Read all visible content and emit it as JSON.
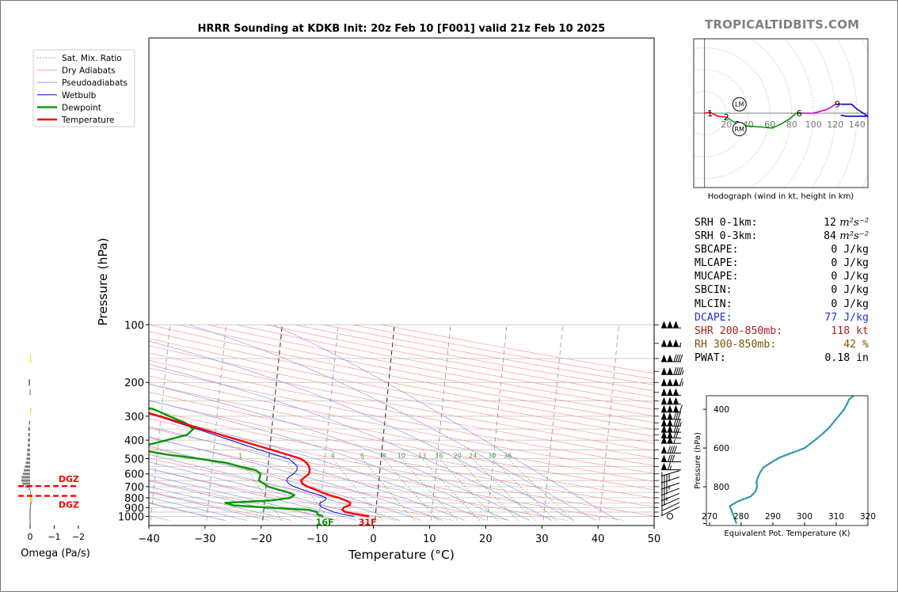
{
  "site": "TROPICALTIDBITS.COM",
  "colors": {
    "temperature": "#ff0000",
    "dewpoint": "#009900",
    "wetbulb": "#0000dd",
    "dry_adiabat": "#ff8888",
    "moist_adiabat": "#8888dd",
    "mixing_ratio": "#339933",
    "isotherm": "#999999",
    "dgz": "#ff0000",
    "omega_fill": "#808080",
    "omega_yellow": "#ffdd00",
    "theta_e": "#3399aa",
    "dcape": "#2233cc",
    "shr": "#aa2222",
    "rh": "#775500"
  },
  "chart_data": [
    {
      "type": "line",
      "name": "skew-t",
      "title": "HRRR Sounding at KDKB Init: 20z Feb 10 [F001] valid 21z Feb 10 2025",
      "xlabel": "Temperature (°C)",
      "ylabel": "Pressure (hPa)",
      "x_ticks": [
        "−40",
        "−30",
        "−20",
        "−10",
        "0",
        "10",
        "20",
        "30",
        "40",
        "50"
      ],
      "y_ticks": [
        "100",
        "200",
        "300",
        "400",
        "500",
        "600",
        "700",
        "800",
        "900",
        "1000"
      ],
      "xlim": [
        -40,
        50
      ],
      "ylim": [
        1050,
        100
      ],
      "scale": "log-pressure, skewed temperature",
      "legend": {
        "placement": "upper-left",
        "entries": [
          "Sat. Mix. Ratio",
          "Dry Adiabats",
          "Pseudoadiabats",
          "Wetbulb",
          "Dewpoint",
          "Temperature"
        ]
      },
      "series": [
        {
          "name": "Temperature",
          "color": "#ff0000",
          "p": [
            1000,
            975,
            950,
            925,
            900,
            875,
            850,
            825,
            800,
            775,
            750,
            725,
            700,
            675,
            650,
            625,
            600,
            575,
            550,
            525,
            500,
            450,
            400,
            350,
            300,
            275,
            250,
            225,
            200,
            175,
            150,
            125,
            100
          ],
          "t": [
            -1.1,
            -3.5,
            -5.5,
            -6.0,
            -5.8,
            -4.8,
            -4.7,
            -5.6,
            -6.9,
            -8.5,
            -9.9,
            -11.2,
            -12.6,
            -13.6,
            -13.9,
            -13.3,
            -12.6,
            -12.5,
            -12.7,
            -13.2,
            -14.3,
            -19.6,
            -25.7,
            -32.5,
            -40.2,
            -44.7,
            -48.0,
            -52.3,
            -56.0,
            -59.0,
            -61.0,
            -63.0,
            -62.0
          ]
        },
        {
          "name": "Dewpoint",
          "color": "#009900",
          "p": [
            1000,
            975,
            950,
            925,
            900,
            875,
            850,
            825,
            800,
            775,
            750,
            725,
            700,
            650,
            600,
            575,
            550,
            525,
            500,
            475,
            450,
            425,
            400,
            375,
            350,
            325,
            300,
            275,
            250,
            225,
            200,
            175,
            150,
            125,
            100
          ],
          "t": [
            -9.3,
            -10.4,
            -10.4,
            -12.0,
            -19.5,
            -25.5,
            -27.0,
            -18.6,
            -15.5,
            -14.8,
            -15.9,
            -17.8,
            -19.6,
            -21.4,
            -21.2,
            -22.1,
            -24.9,
            -27.6,
            -32.5,
            -38.4,
            -42.9,
            -42.0,
            -38.5,
            -35.0,
            -34.0,
            -35.5,
            -38.5,
            -41.5,
            -50.0,
            -57.0,
            -58.0,
            -64.0,
            -71.0,
            -76.0,
            -80.0
          ]
        },
        {
          "name": "Wetbulb",
          "color": "#0000dd",
          "p": [
            1000,
            975,
            950,
            925,
            900,
            875,
            850,
            825,
            800,
            775,
            750,
            725,
            700,
            675,
            650,
            625,
            600,
            575,
            550,
            525,
            500,
            450,
            400,
            350,
            300,
            275,
            250,
            225,
            200,
            175,
            150,
            125,
            100
          ],
          "t": [
            -3.8,
            -5.9,
            -7.5,
            -8.5,
            -9.6,
            -10.1,
            -10.1,
            -9.2,
            -9.1,
            -10.4,
            -11.9,
            -13.5,
            -15.0,
            -16.0,
            -16.5,
            -16.2,
            -15.3,
            -14.8,
            -14.8,
            -15.5,
            -16.5,
            -21.8,
            -27.2,
            -33.3,
            -40.6,
            -45.0,
            -48.4,
            -52.6,
            -56.2,
            -59.2,
            -61.2,
            -63.2,
            -62.3
          ]
        }
      ],
      "surface_labels": {
        "temperature": "31F",
        "dewpoint": "16F"
      },
      "mixing_ratio_labels": [
        "1",
        "2",
        "4",
        "6",
        "8",
        "10",
        "13",
        "16",
        "20",
        "24",
        "30",
        "36"
      ],
      "wind_barbs": [
        {
          "p": 100,
          "kt": 150
        },
        {
          "p": 125,
          "kt": 155
        },
        {
          "p": 150,
          "kt": 140
        },
        {
          "p": 175,
          "kt": 145
        },
        {
          "p": 200,
          "kt": 165
        },
        {
          "p": 225,
          "kt": 150
        },
        {
          "p": 250,
          "kt": 150
        },
        {
          "p": 275,
          "kt": 160
        },
        {
          "p": 300,
          "kt": 130
        },
        {
          "p": 325,
          "kt": 135
        },
        {
          "p": 350,
          "kt": 125
        },
        {
          "p": 375,
          "kt": 120
        },
        {
          "p": 400,
          "kt": 105
        },
        {
          "p": 450,
          "kt": 90
        },
        {
          "p": 500,
          "kt": 80
        },
        {
          "p": 550,
          "kt": 65
        },
        {
          "p": 600,
          "kt": 55
        },
        {
          "p": 650,
          "kt": 40
        },
        {
          "p": 700,
          "kt": 35
        },
        {
          "p": 750,
          "kt": 30
        },
        {
          "p": 800,
          "kt": 25
        },
        {
          "p": 850,
          "kt": 20
        },
        {
          "p": 900,
          "kt": 10
        },
        {
          "p": 950,
          "kt": 5
        },
        {
          "p": 1000,
          "kt": 0
        }
      ]
    },
    {
      "type": "bar",
      "name": "omega",
      "xlabel": "Omega (Pa/s)",
      "x_ticks": [
        "0",
        "−1",
        "−2"
      ],
      "xlim": [
        0.3,
        -2.2
      ],
      "dgz_label": "DGZ",
      "dgz_bounds_hpa": [
        695,
        782
      ],
      "levels": [
        {
          "p": 200,
          "w": 0.06
        },
        {
          "p": 225,
          "w": 0.02
        },
        {
          "p": 280,
          "w": -0.02
        },
        {
          "p": 325,
          "w": 0.05
        },
        {
          "p": 350,
          "w": 0.08
        },
        {
          "p": 375,
          "w": 0.08
        },
        {
          "p": 400,
          "w": 0.09
        },
        {
          "p": 425,
          "w": 0.1
        },
        {
          "p": 450,
          "w": 0.12
        },
        {
          "p": 475,
          "w": 0.13
        },
        {
          "p": 500,
          "w": 0.15
        },
        {
          "p": 525,
          "w": 0.18
        },
        {
          "p": 550,
          "w": 0.22
        },
        {
          "p": 575,
          "w": 0.26
        },
        {
          "p": 600,
          "w": 0.3
        },
        {
          "p": 625,
          "w": 0.35
        },
        {
          "p": 650,
          "w": 0.36
        },
        {
          "p": 675,
          "w": 0.32
        },
        {
          "p": 700,
          "w": 0.2
        },
        {
          "p": 725,
          "w": 0.05
        },
        {
          "p": 750,
          "w": -0.03
        },
        {
          "p": 775,
          "w": -0.05
        },
        {
          "p": 800,
          "w": -0.06
        },
        {
          "p": 825,
          "w": -0.08
        },
        {
          "p": 850,
          "w": -0.06
        },
        {
          "p": 875,
          "w": -0.04
        },
        {
          "p": 900,
          "w": -0.02
        }
      ],
      "yellow_levels": [
        {
          "p": 150,
          "w": -0.03
        },
        {
          "p": 280,
          "w": -0.03
        },
        {
          "p": 790,
          "w": -0.05
        },
        {
          "p": 810,
          "w": -0.06
        },
        {
          "p": 830,
          "w": -0.07
        }
      ]
    },
    {
      "type": "line",
      "name": "hodograph",
      "caption": "Hodograph (wind in kt, height in km)",
      "ring_labels": [
        "20",
        "40",
        "60",
        "80",
        "100",
        "120",
        "140"
      ],
      "xlim": [
        -10,
        150
      ],
      "ylim": [
        -75,
        75
      ],
      "markers": [
        "LM",
        "RM"
      ],
      "height_labels": [
        {
          "label": "1",
          "u": 5,
          "v": 0
        },
        {
          "label": "2",
          "u": 20,
          "v": -4
        },
        {
          "label": "3",
          "u": 30,
          "v": -11
        },
        {
          "label": "6",
          "u": 87,
          "v": 0
        },
        {
          "label": "9",
          "u": 122,
          "v": 9
        }
      ],
      "segments": [
        {
          "color": "#ff0000",
          "u": [
            0,
            5,
            12,
            20
          ],
          "v": [
            0,
            1,
            -3,
            -4
          ]
        },
        {
          "color": "#009900",
          "u": [
            20,
            30,
            40,
            52,
            62,
            70,
            78,
            84,
            90
          ],
          "v": [
            -4,
            -11,
            -13,
            -14,
            -15,
            -11,
            -6,
            0,
            0
          ]
        },
        {
          "color": "#cc00cc",
          "u": [
            90,
            100,
            110,
            115,
            120,
            125
          ],
          "v": [
            0,
            0,
            3,
            5,
            9,
            9
          ]
        },
        {
          "color": "#0000dd",
          "u": [
            125,
            135,
            140,
            150,
            145,
            130,
            125
          ],
          "v": [
            9,
            9,
            4,
            -3,
            -3,
            -3,
            -2
          ]
        }
      ],
      "storm_motion": [
        {
          "label": "LM",
          "u": 32,
          "v": 9
        },
        {
          "label": "RM",
          "u": 32,
          "v": -16
        }
      ]
    },
    {
      "type": "line",
      "name": "theta-e",
      "xlabel": "Equivalent Pot. Temperature (K)",
      "ylabel": "Pressure (hPa)",
      "x_ticks": [
        "270",
        "280",
        "290",
        "300",
        "310",
        "320"
      ],
      "y_ticks": [
        "400",
        "600",
        "800"
      ],
      "xlim": [
        269,
        320
      ],
      "ylim": [
        1000,
        330
      ],
      "series": [
        {
          "name": "theta-e",
          "p": [
            990,
            950,
            900,
            875,
            850,
            825,
            800,
            775,
            750,
            725,
            700,
            650,
            600,
            550,
            500,
            450,
            400,
            370,
            350,
            340,
            330
          ],
          "thetae": [
            278.5,
            277.6,
            276.4,
            279.0,
            283.0,
            284.5,
            285.0,
            284.8,
            285.3,
            286.0,
            287.0,
            292.0,
            300.0,
            304.0,
            307.5,
            310.0,
            312.5,
            313.5,
            314.0,
            314.7,
            315.5
          ]
        }
      ]
    }
  ],
  "stats": [
    {
      "label": "SRH 0-1km:",
      "value": "12",
      "unit": "m²s⁻²"
    },
    {
      "label": "SRH 0-3km:",
      "value": "84",
      "unit": "m²s⁻²"
    },
    {
      "label": "SBCAPE:",
      "value": "0 J/kg"
    },
    {
      "label": "MLCAPE:",
      "value": "0 J/kg"
    },
    {
      "label": "MUCAPE:",
      "value": "0 J/kg"
    },
    {
      "label": "SBCIN:",
      "value": "0 J/kg"
    },
    {
      "label": "MLCIN:",
      "value": "0 J/kg"
    },
    {
      "label": "DCAPE:",
      "value": "77 J/kg",
      "color": "#2233cc"
    },
    {
      "label": "SHR 200-850mb:",
      "value": "118 kt",
      "color": "#aa2222"
    },
    {
      "label": "RH 300-850mb:",
      "value": "42 %",
      "color": "#775500"
    },
    {
      "label": "PWAT:",
      "value": "0.18 in"
    }
  ]
}
